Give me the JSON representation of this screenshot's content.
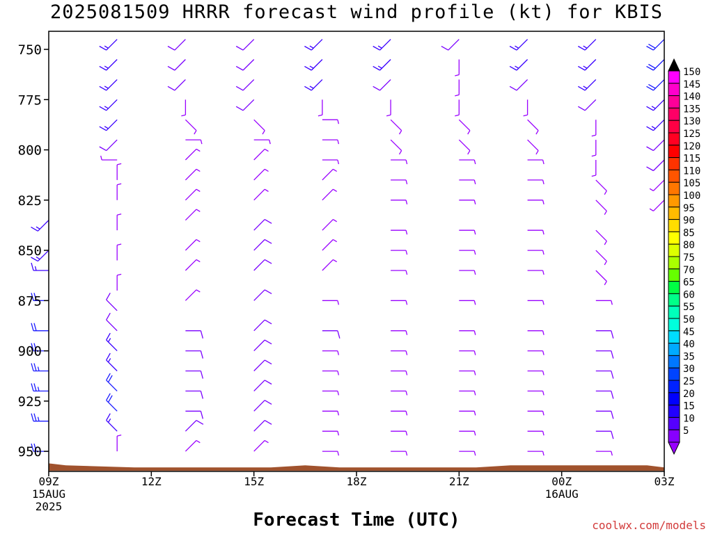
{
  "page": {
    "title": "2025081509 HRRR forecast wind profile (kt) for KBIS",
    "xlabel": "Forecast Time (UTC)",
    "credit": "coolwx.com/models"
  },
  "chart_data": {
    "type": "wind-barb-profile",
    "title": "2025081509 HRRR forecast wind profile (kt) for KBIS",
    "xlabel": "Forecast Time (UTC)",
    "ylabel": "",
    "y_axis": {
      "label": "",
      "ticks": [
        750,
        775,
        800,
        825,
        850,
        875,
        900,
        925,
        950
      ],
      "range_mb": [
        741,
        960
      ],
      "inverted": true
    },
    "x_axis": {
      "range_hours": [
        0,
        18
      ],
      "ticks": [
        {
          "hour": 0,
          "lines": [
            "09Z",
            "15AUG",
            "2025"
          ]
        },
        {
          "hour": 3,
          "lines": [
            "12Z"
          ]
        },
        {
          "hour": 6,
          "lines": [
            "15Z"
          ]
        },
        {
          "hour": 9,
          "lines": [
            "18Z"
          ]
        },
        {
          "hour": 12,
          "lines": [
            "21Z"
          ]
        },
        {
          "hour": 15,
          "lines": [
            "00Z",
            "16AUG"
          ]
        },
        {
          "hour": 18,
          "lines": [
            "03Z"
          ]
        }
      ]
    },
    "colorbar": {
      "labels": [
        "150",
        "145",
        "140",
        "135",
        "130",
        "125",
        "120",
        "115",
        "110",
        "105",
        "100",
        "95",
        "90",
        "85",
        "80",
        "75",
        "70",
        "65",
        "60",
        "55",
        "50",
        "45",
        "40",
        "35",
        "30",
        "25",
        "20",
        "15",
        "10",
        "5"
      ],
      "colors": [
        "#ff00ff",
        "#ff00cc",
        "#ff0099",
        "#ff0066",
        "#ff0044",
        "#ff0022",
        "#ff0000",
        "#ff3300",
        "#ff5500",
        "#ff7700",
        "#ff9900",
        "#ffbb00",
        "#ffdd00",
        "#ffff00",
        "#ddff00",
        "#aaff00",
        "#66ff00",
        "#00ff44",
        "#00ff88",
        "#00ffbb",
        "#00ffdd",
        "#00ddff",
        "#00aaff",
        "#0077ff",
        "#0044ff",
        "#0022ff",
        "#0000ff",
        "#2200ff",
        "#5500ff",
        "#8800ff"
      ],
      "top_arrow_color": "#000000",
      "bottom_arrow_color": "#9900ff"
    },
    "terrain_color": "#a0522d",
    "barb_colors": {
      "calm": "#9900ff",
      "light": "#7a00ff",
      "moderate": "#3a00ff",
      "strong": "#1a1aff"
    },
    "series": [
      {
        "hour": 0,
        "profile": [
          [
            835,
            "SW",
            15
          ],
          [
            850,
            "SW",
            15
          ],
          [
            860,
            "W",
            15
          ],
          [
            875,
            "W",
            20
          ],
          [
            890,
            "W",
            20
          ],
          [
            900,
            "W",
            20
          ],
          [
            910,
            "W",
            25
          ],
          [
            920,
            "W",
            25
          ],
          [
            935,
            "W",
            25
          ],
          [
            950,
            "W",
            20
          ]
        ]
      },
      {
        "hour": 2,
        "profile": [
          [
            745,
            "SW",
            15
          ],
          [
            755,
            "SW",
            15
          ],
          [
            765,
            "SW",
            15
          ],
          [
            775,
            "SW",
            15
          ],
          [
            785,
            "SW",
            15
          ],
          [
            795,
            "SW",
            10
          ],
          [
            805,
            "W",
            5
          ],
          [
            815,
            "N",
            5
          ],
          [
            825,
            "N",
            5
          ],
          [
            840,
            "N",
            5
          ],
          [
            855,
            "N",
            5
          ],
          [
            870,
            "N",
            5
          ],
          [
            880,
            "NW",
            10
          ],
          [
            890,
            "NW",
            10
          ],
          [
            900,
            "NW",
            15
          ],
          [
            910,
            "NW",
            15
          ],
          [
            920,
            "NW",
            20
          ],
          [
            930,
            "NW",
            20
          ],
          [
            940,
            "NW",
            15
          ],
          [
            950,
            "N",
            5
          ]
        ]
      },
      {
        "hour": 4,
        "profile": [
          [
            745,
            "SW",
            10
          ],
          [
            755,
            "SW",
            10
          ],
          [
            765,
            "SW",
            10
          ],
          [
            775,
            "S",
            5
          ],
          [
            785,
            "SE",
            5
          ],
          [
            795,
            "E",
            5
          ],
          [
            805,
            "NE",
            5
          ],
          [
            815,
            "NE",
            5
          ],
          [
            825,
            "NE",
            5
          ],
          [
            835,
            "NE",
            5
          ],
          [
            850,
            "NE",
            5
          ],
          [
            860,
            "NE",
            5
          ],
          [
            875,
            "NE",
            5
          ],
          [
            890,
            "E",
            10
          ],
          [
            900,
            "E",
            10
          ],
          [
            910,
            "E",
            10
          ],
          [
            920,
            "E",
            10
          ],
          [
            930,
            "E",
            10
          ],
          [
            940,
            "NE",
            10
          ],
          [
            950,
            "NE",
            5
          ]
        ]
      },
      {
        "hour": 6,
        "profile": [
          [
            745,
            "SW",
            10
          ],
          [
            755,
            "SW",
            10
          ],
          [
            765,
            "SW",
            10
          ],
          [
            775,
            "SW",
            10
          ],
          [
            785,
            "SE",
            5
          ],
          [
            795,
            "E",
            5
          ],
          [
            805,
            "NE",
            5
          ],
          [
            815,
            "NE",
            5
          ],
          [
            825,
            "NE",
            5
          ],
          [
            840,
            "NE",
            10
          ],
          [
            850,
            "NE",
            10
          ],
          [
            860,
            "NE",
            10
          ],
          [
            875,
            "NE",
            10
          ],
          [
            890,
            "NE",
            10
          ],
          [
            900,
            "NE",
            10
          ],
          [
            910,
            "NE",
            10
          ],
          [
            920,
            "NE",
            10
          ],
          [
            930,
            "NE",
            10
          ],
          [
            940,
            "NE",
            10
          ],
          [
            950,
            "NE",
            5
          ]
        ]
      },
      {
        "hour": 8,
        "profile": [
          [
            745,
            "SW",
            15
          ],
          [
            755,
            "SW",
            15
          ],
          [
            765,
            "SW",
            15
          ],
          [
            775,
            "S",
            5
          ],
          [
            785,
            "E",
            5
          ],
          [
            795,
            "E",
            5
          ],
          [
            805,
            "E",
            5
          ],
          [
            815,
            "NE",
            5
          ],
          [
            825,
            "NE",
            5
          ],
          [
            840,
            "NE",
            5
          ],
          [
            850,
            "NE",
            5
          ],
          [
            860,
            "NE",
            5
          ],
          [
            875,
            "E",
            5
          ],
          [
            890,
            "E",
            10
          ],
          [
            900,
            "E",
            5
          ],
          [
            910,
            "E",
            5
          ],
          [
            920,
            "E",
            5
          ],
          [
            930,
            "E",
            5
          ],
          [
            940,
            "E",
            5
          ],
          [
            950,
            "E",
            5
          ]
        ]
      },
      {
        "hour": 10,
        "profile": [
          [
            745,
            "SW",
            15
          ],
          [
            755,
            "SW",
            15
          ],
          [
            765,
            "SW",
            10
          ],
          [
            775,
            "S",
            5
          ],
          [
            785,
            "SE",
            5
          ],
          [
            795,
            "SE",
            5
          ],
          [
            805,
            "E",
            5
          ],
          [
            815,
            "E",
            5
          ],
          [
            825,
            "E",
            5
          ],
          [
            840,
            "E",
            5
          ],
          [
            850,
            "E",
            5
          ],
          [
            860,
            "E",
            5
          ],
          [
            875,
            "E",
            5
          ],
          [
            890,
            "E",
            5
          ],
          [
            900,
            "E",
            5
          ],
          [
            910,
            "E",
            5
          ],
          [
            920,
            "E",
            5
          ],
          [
            930,
            "E",
            5
          ],
          [
            940,
            "E",
            5
          ],
          [
            950,
            "E",
            5
          ]
        ]
      },
      {
        "hour": 12,
        "profile": [
          [
            745,
            "SW",
            10
          ],
          [
            755,
            "S",
            5
          ],
          [
            765,
            "S",
            5
          ],
          [
            775,
            "S",
            5
          ],
          [
            785,
            "SE",
            5
          ],
          [
            795,
            "SE",
            5
          ],
          [
            805,
            "E",
            5
          ],
          [
            815,
            "E",
            5
          ],
          [
            825,
            "E",
            5
          ],
          [
            840,
            "E",
            5
          ],
          [
            850,
            "E",
            5
          ],
          [
            860,
            "E",
            5
          ],
          [
            875,
            "E",
            5
          ],
          [
            890,
            "E",
            5
          ],
          [
            900,
            "E",
            5
          ],
          [
            910,
            "E",
            5
          ],
          [
            920,
            "E",
            5
          ],
          [
            930,
            "E",
            5
          ],
          [
            940,
            "E",
            5
          ],
          [
            950,
            "E",
            5
          ]
        ]
      },
      {
        "hour": 14,
        "profile": [
          [
            745,
            "SW",
            15
          ],
          [
            755,
            "SW",
            15
          ],
          [
            765,
            "SW",
            10
          ],
          [
            775,
            "S",
            5
          ],
          [
            785,
            "SE",
            5
          ],
          [
            795,
            "SE",
            5
          ],
          [
            805,
            "E",
            5
          ],
          [
            815,
            "E",
            5
          ],
          [
            825,
            "E",
            5
          ],
          [
            840,
            "E",
            5
          ],
          [
            850,
            "E",
            5
          ],
          [
            860,
            "E",
            5
          ],
          [
            875,
            "E",
            5
          ],
          [
            890,
            "E",
            5
          ],
          [
            900,
            "E",
            5
          ],
          [
            910,
            "E",
            5
          ],
          [
            920,
            "E",
            5
          ],
          [
            930,
            "E",
            5
          ],
          [
            940,
            "E",
            5
          ],
          [
            950,
            "E",
            5
          ]
        ]
      },
      {
        "hour": 16,
        "profile": [
          [
            745,
            "SW",
            15
          ],
          [
            755,
            "SW",
            15
          ],
          [
            765,
            "SW",
            15
          ],
          [
            775,
            "SW",
            10
          ],
          [
            785,
            "S",
            5
          ],
          [
            795,
            "S",
            5
          ],
          [
            805,
            "S",
            5
          ],
          [
            815,
            "SE",
            5
          ],
          [
            825,
            "SE",
            5
          ],
          [
            840,
            "SE",
            5
          ],
          [
            850,
            "SE",
            5
          ],
          [
            860,
            "SE",
            5
          ],
          [
            875,
            "E",
            5
          ],
          [
            890,
            "E",
            10
          ],
          [
            900,
            "E",
            10
          ],
          [
            910,
            "E",
            10
          ],
          [
            920,
            "E",
            10
          ],
          [
            930,
            "E",
            10
          ],
          [
            940,
            "E",
            10
          ],
          [
            950,
            "E",
            5
          ]
        ]
      },
      {
        "hour": 18,
        "profile": [
          [
            745,
            "SW",
            20
          ],
          [
            755,
            "SW",
            20
          ],
          [
            765,
            "SW",
            20
          ],
          [
            775,
            "SW",
            15
          ],
          [
            785,
            "SW",
            15
          ],
          [
            795,
            "SW",
            10
          ],
          [
            805,
            "SW",
            10
          ],
          [
            815,
            "SW",
            5
          ],
          [
            825,
            "SW",
            5
          ]
        ]
      }
    ]
  }
}
